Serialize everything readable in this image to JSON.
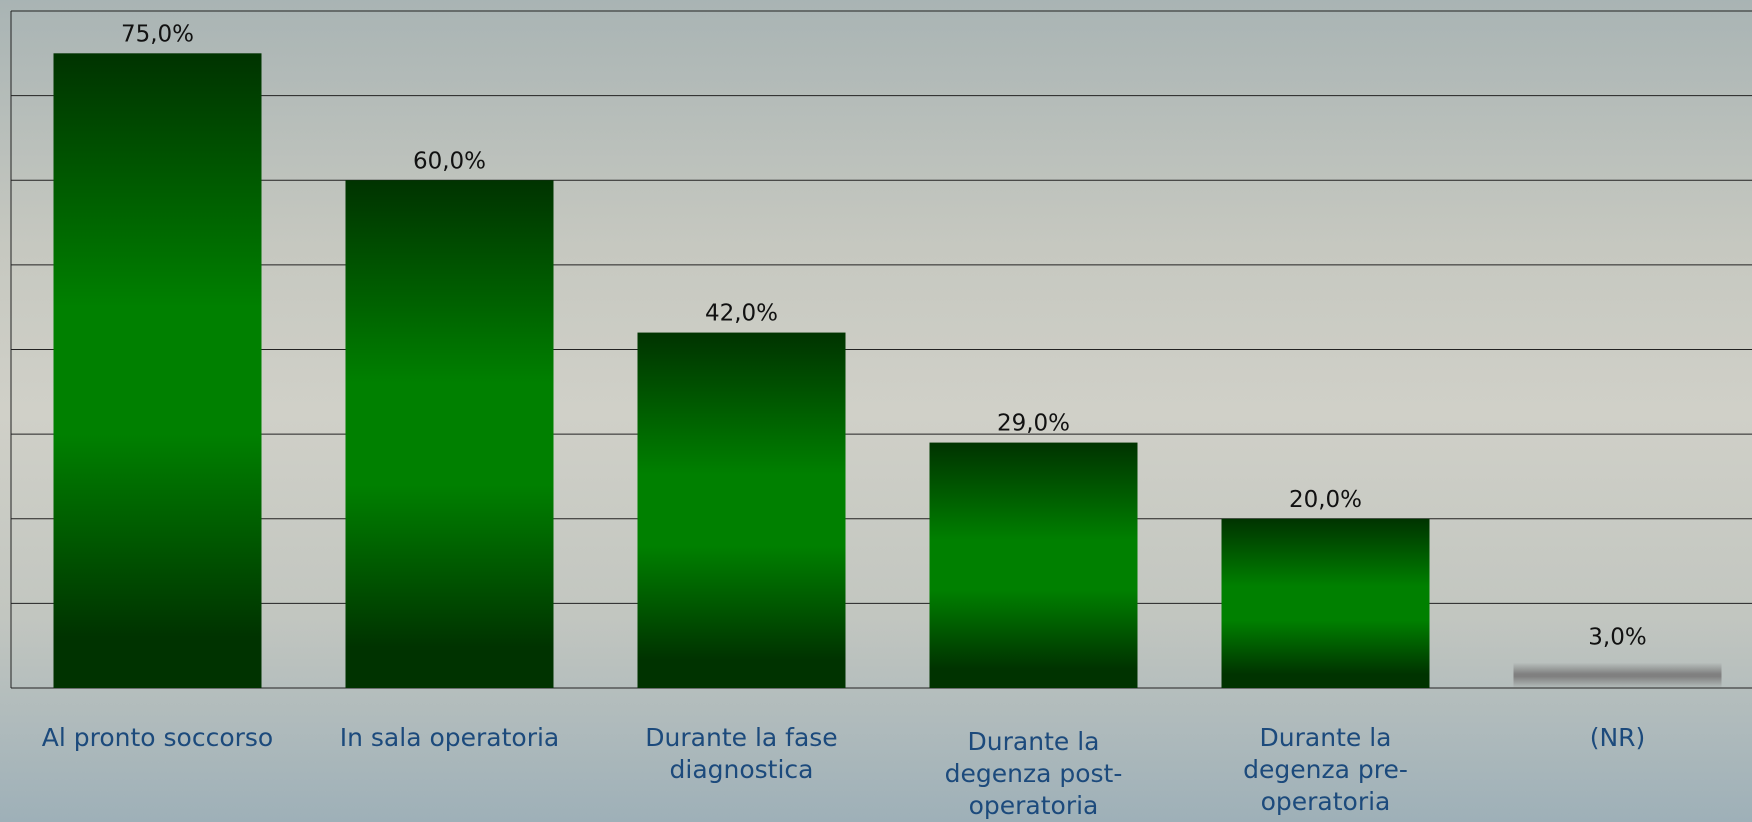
{
  "chart_data": {
    "type": "bar",
    "categories": [
      "Al pronto soccorso",
      "In sala operatoria",
      "Durante la fase diagnostica",
      "Durante la degenza post-operatoria",
      "Durante la degenza pre-operatoria",
      "(NR)"
    ],
    "values": [
      75,
      60,
      42,
      29,
      20,
      3
    ],
    "value_labels": [
      "75,0%",
      "60,0%",
      "42,0%",
      "29,0%",
      "20,0%",
      "3,0%"
    ],
    "colors": [
      "#008000",
      "#008000",
      "#008000",
      "#008000",
      "#008000",
      "#808080"
    ],
    "ylim": [
      0,
      80
    ],
    "yticks": [
      0,
      10,
      20,
      30,
      40,
      50,
      60,
      70,
      80
    ],
    "grid": true
  }
}
